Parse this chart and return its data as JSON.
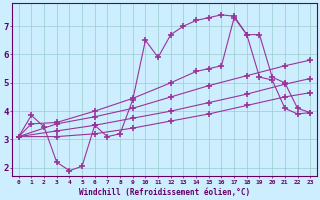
{
  "xlabel": "Windchill (Refroidissement éolien,°C)",
  "bg_color": "#cceeff",
  "line_color": "#993399",
  "grid_color": "#99cccc",
  "axis_color": "#660066",
  "tick_color": "#660066",
  "xlim": [
    -0.5,
    23.5
  ],
  "ylim": [
    1.7,
    7.8
  ],
  "xticks": [
    0,
    1,
    2,
    3,
    4,
    5,
    6,
    7,
    8,
    9,
    10,
    11,
    12,
    13,
    14,
    15,
    16,
    17,
    18,
    19,
    20,
    21,
    22,
    23
  ],
  "yticks": [
    2,
    3,
    4,
    5,
    6,
    7
  ],
  "line1_x": [
    0,
    1,
    2,
    3,
    4,
    5,
    6,
    7,
    8,
    9,
    10,
    11,
    12,
    13,
    14,
    15,
    16,
    17,
    18,
    19,
    20,
    21,
    22,
    23
  ],
  "line1_y": [
    3.1,
    3.85,
    3.45,
    2.2,
    1.9,
    2.05,
    3.5,
    3.1,
    3.2,
    4.4,
    6.5,
    5.9,
    6.7,
    7.0,
    7.2,
    7.3,
    7.4,
    7.35,
    6.7,
    5.2,
    5.1,
    4.1,
    3.9,
    3.95
  ],
  "line2_x": [
    0,
    1,
    3,
    6,
    9,
    12,
    14,
    15,
    16,
    17,
    18,
    19,
    20,
    21,
    22,
    23
  ],
  "line2_y": [
    3.1,
    3.55,
    3.6,
    4.0,
    4.45,
    5.0,
    5.4,
    5.5,
    5.6,
    7.3,
    6.7,
    6.7,
    5.2,
    5.0,
    4.1,
    3.95
  ],
  "line3_x": [
    0,
    3,
    6,
    9,
    12,
    15,
    18,
    21,
    23
  ],
  "line3_y": [
    3.1,
    3.55,
    3.8,
    4.1,
    4.5,
    4.9,
    5.25,
    5.6,
    5.8
  ],
  "line4_x": [
    0,
    3,
    6,
    9,
    12,
    15,
    18,
    21,
    23
  ],
  "line4_y": [
    3.1,
    3.3,
    3.5,
    3.75,
    4.0,
    4.3,
    4.6,
    4.95,
    5.15
  ],
  "line5_x": [
    0,
    3,
    6,
    9,
    12,
    15,
    18,
    21,
    23
  ],
  "line5_y": [
    3.1,
    3.1,
    3.2,
    3.4,
    3.65,
    3.9,
    4.2,
    4.5,
    4.65
  ]
}
